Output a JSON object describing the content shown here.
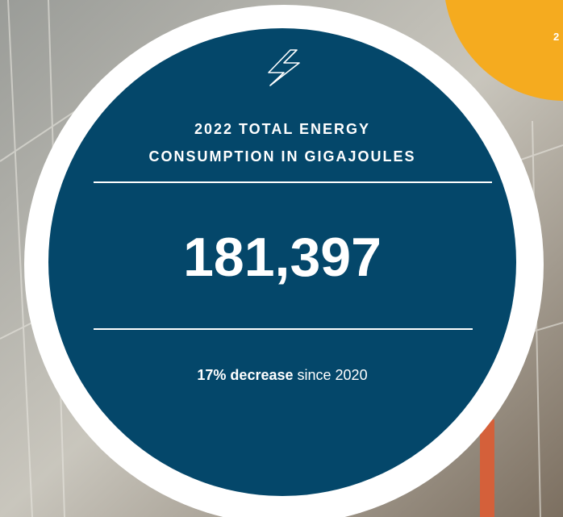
{
  "heading_lines": [
    "2022 TOTAL ENERGY",
    "CONSUMPTION IN GIGAJOULES"
  ],
  "value": "181,397",
  "change": {
    "bold": "17% decrease",
    "rest": "since 2020"
  },
  "corner_badge": "2"
}
